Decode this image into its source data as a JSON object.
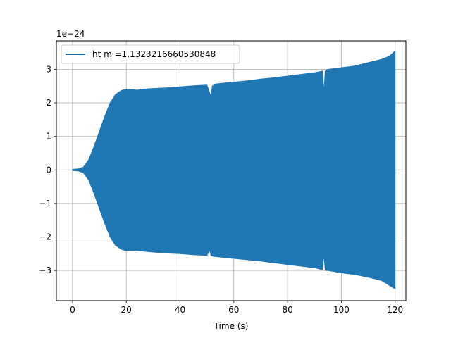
{
  "chart_data": {
    "type": "area",
    "title": "",
    "xlabel": "Time (s)",
    "ylabel": "",
    "y_offset_label": "1e−24",
    "xlim": [
      -6,
      124
    ],
    "ylim": [
      -3.9,
      3.85
    ],
    "xticks": [
      0,
      20,
      40,
      60,
      80,
      100,
      120
    ],
    "xtick_labels": [
      "0",
      "20",
      "40",
      "60",
      "80",
      "100",
      "120"
    ],
    "yticks": [
      -3,
      -2,
      -1,
      0,
      1,
      2,
      3
    ],
    "ytick_labels": [
      "−3",
      "−2",
      "−1",
      "0",
      "1",
      "2",
      "3"
    ],
    "grid": true,
    "legend_position": "top-left",
    "series": [
      {
        "name": "ht m =1.1323216660530848",
        "color": "#1f77b4",
        "x": [
          0,
          2,
          4,
          6,
          8,
          10,
          12,
          14,
          16,
          18,
          19,
          20,
          22,
          24,
          26,
          30,
          35,
          40,
          45,
          50,
          51,
          51.5,
          52,
          53,
          55,
          60,
          65,
          70,
          75,
          80,
          85,
          90,
          92,
          93,
          93.5,
          94,
          95,
          100,
          105,
          110,
          115,
          118,
          120
        ],
        "upper": [
          0.02,
          0.03,
          0.08,
          0.3,
          0.7,
          1.15,
          1.6,
          2.0,
          2.25,
          2.36,
          2.39,
          2.4,
          2.4,
          2.38,
          2.41,
          2.43,
          2.45,
          2.48,
          2.51,
          2.53,
          2.3,
          2.2,
          2.5,
          2.56,
          2.58,
          2.62,
          2.66,
          2.71,
          2.75,
          2.8,
          2.85,
          2.9,
          2.93,
          2.95,
          2.3,
          2.95,
          3.0,
          3.05,
          3.1,
          3.2,
          3.3,
          3.4,
          3.55
        ],
        "lower": [
          -0.02,
          -0.03,
          -0.08,
          -0.3,
          -0.7,
          -1.15,
          -1.6,
          -2.0,
          -2.25,
          -2.36,
          -2.39,
          -2.4,
          -2.4,
          -2.4,
          -2.42,
          -2.45,
          -2.48,
          -2.5,
          -2.53,
          -2.55,
          -2.4,
          -2.55,
          -2.57,
          -2.58,
          -2.6,
          -2.64,
          -2.68,
          -2.72,
          -2.77,
          -2.82,
          -2.87,
          -2.92,
          -2.96,
          -2.98,
          -2.5,
          -3.0,
          -3.0,
          -3.07,
          -3.12,
          -3.2,
          -3.3,
          -3.45,
          -3.55
        ]
      }
    ]
  }
}
